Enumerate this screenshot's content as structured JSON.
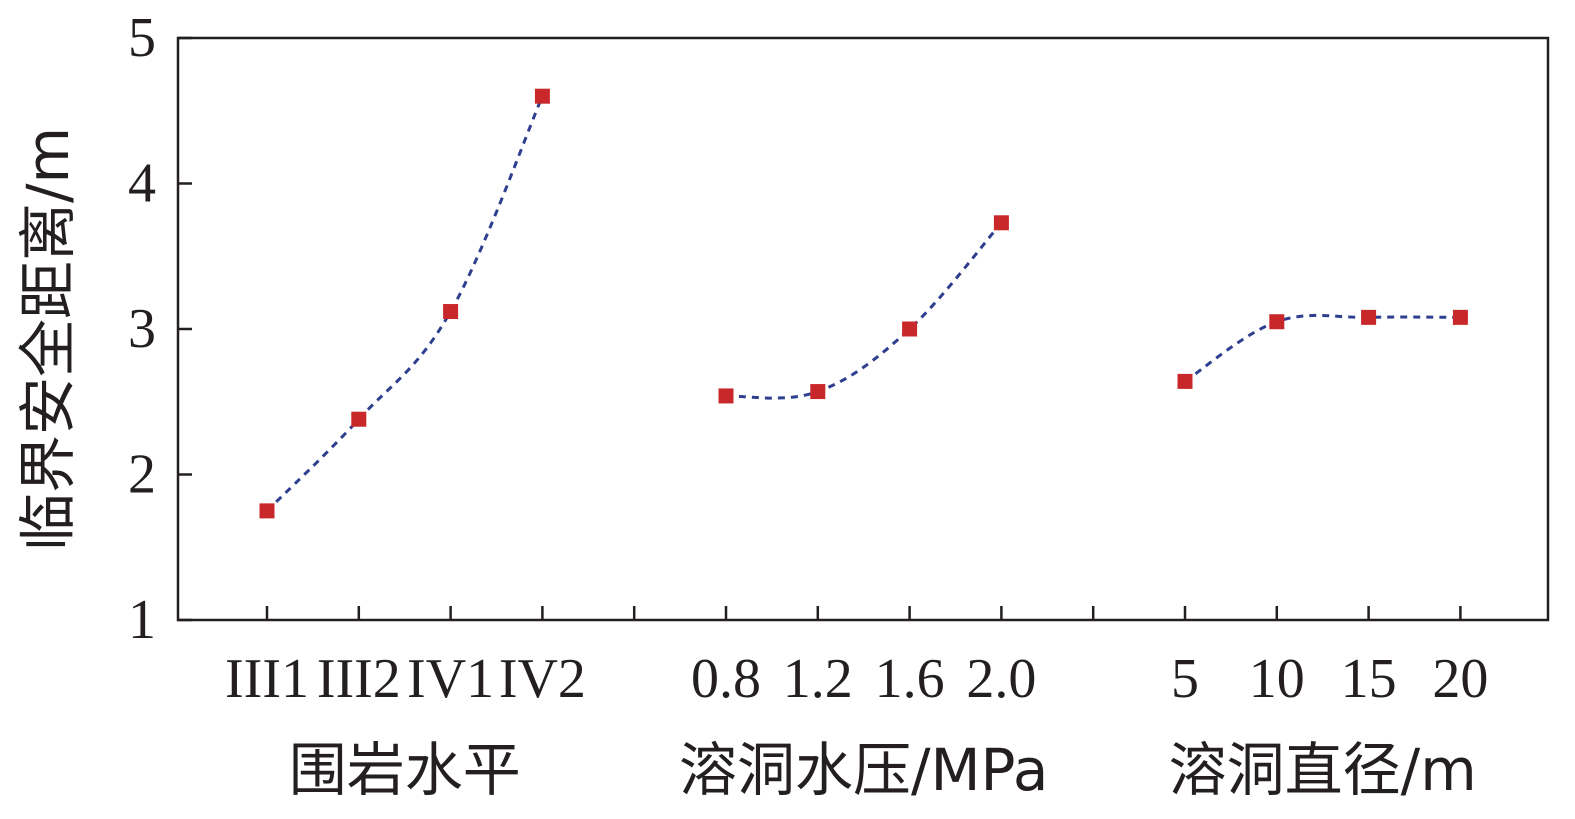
{
  "chart_data": {
    "type": "scatter",
    "ylabel": "临界安全距离/m",
    "ylim": [
      1,
      5
    ],
    "yticks": [
      1,
      2,
      3,
      4,
      5
    ],
    "grid": false,
    "colors": {
      "marker": "#c8282a",
      "line": "#2f3f8f",
      "axis": "#231f20"
    },
    "groups": [
      {
        "xlabel": "围岩水平",
        "categories": [
          "III1",
          "III2",
          "IV1",
          "IV2"
        ],
        "values": [
          1.75,
          2.38,
          3.12,
          4.6
        ]
      },
      {
        "xlabel": "溶洞水压/MPa",
        "categories": [
          "0.8",
          "1.2",
          "1.6",
          "2.0"
        ],
        "values": [
          2.54,
          2.57,
          3.0,
          3.73
        ]
      },
      {
        "xlabel": "溶洞直径/m",
        "categories": [
          "5",
          "10",
          "15",
          "20"
        ],
        "values": [
          2.64,
          3.05,
          3.08,
          3.08
        ]
      }
    ]
  }
}
